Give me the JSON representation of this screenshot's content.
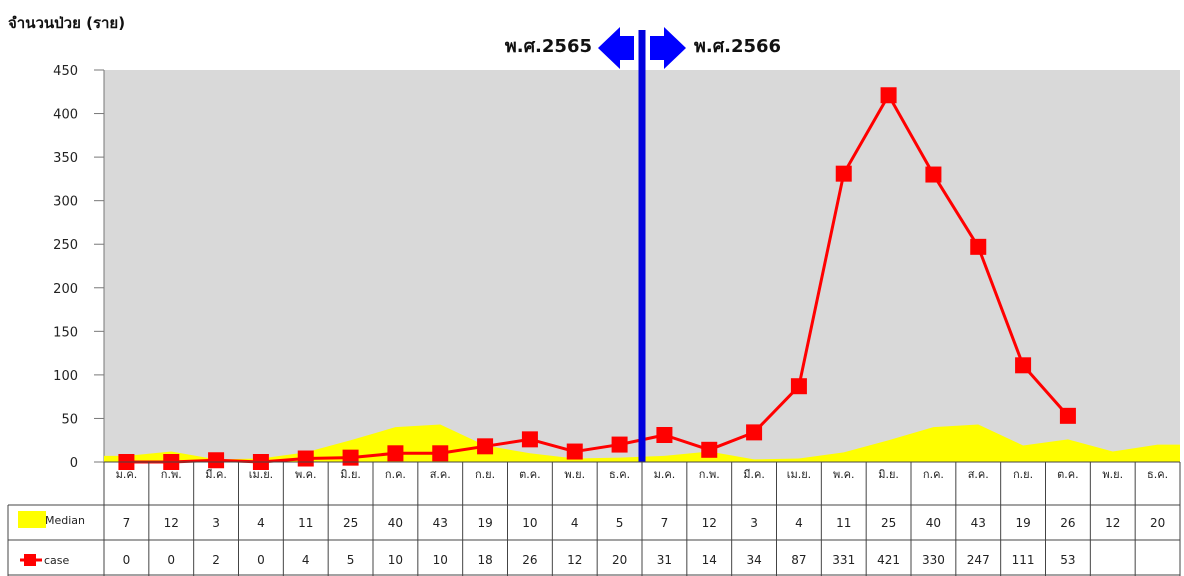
{
  "chart_data": {
    "type": "line",
    "ylabel": "จำนวนป่วย (ราย)",
    "ylim": [
      0,
      450
    ],
    "yticks": [
      0,
      50,
      100,
      150,
      200,
      250,
      300,
      350,
      400,
      450
    ],
    "grid": false,
    "categories": [
      "ม.ค.",
      "ก.พ.",
      "มี.ค.",
      "เม.ย.",
      "พ.ค.",
      "มิ.ย.",
      "ก.ค.",
      "ส.ค.",
      "ก.ย.",
      "ต.ค.",
      "พ.ย.",
      "ธ.ค.",
      "ม.ค.",
      "ก.พ.",
      "มี.ค.",
      "เม.ย.",
      "พ.ค.",
      "มิ.ย.",
      "ก.ค.",
      "ส.ค.",
      "ก.ย.",
      "ต.ค.",
      "พ.ย.",
      "ธ.ค."
    ],
    "year_divider": {
      "left_label": "พ.ศ.2565",
      "right_label": "พ.ศ.2566",
      "after_index": 11
    },
    "series": [
      {
        "name": "Median",
        "type": "area",
        "color": "#ffff00",
        "values": [
          7,
          12,
          3,
          4,
          11,
          25,
          40,
          43,
          19,
          10,
          4,
          5,
          7,
          12,
          3,
          4,
          11,
          25,
          40,
          43,
          19,
          26,
          12,
          20
        ]
      },
      {
        "name": "case",
        "type": "line",
        "color": "#ff0000",
        "values": [
          0,
          0,
          2,
          0,
          4,
          5,
          10,
          10,
          18,
          26,
          12,
          20,
          31,
          14,
          34,
          87,
          331,
          421,
          330,
          247,
          111,
          53,
          null,
          null
        ]
      }
    ],
    "colors": {
      "plot_background": "#d9d9d9",
      "divider": "#0000dd",
      "arrow": "#0000ff"
    }
  }
}
